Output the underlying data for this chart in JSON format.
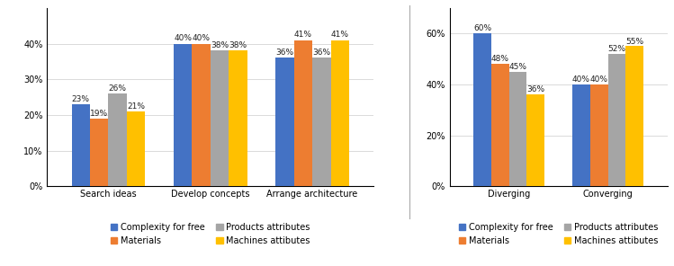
{
  "left_categories": [
    "Search ideas",
    "Develop concepts",
    "Arrange architecture"
  ],
  "right_categories": [
    "Diverging",
    "Converging"
  ],
  "series_names": [
    "Complexity for free",
    "Materials",
    "Products attributes",
    "Machines attibutes"
  ],
  "colors": [
    "#4472C4",
    "#ED7D31",
    "#A5A5A5",
    "#FFC000"
  ],
  "left_values": {
    "Complexity for free": [
      23,
      40,
      36
    ],
    "Materials": [
      19,
      40,
      41
    ],
    "Products attributes": [
      26,
      38,
      36
    ],
    "Machines attibutes": [
      21,
      38,
      41
    ]
  },
  "right_values": {
    "Complexity for free": [
      60,
      40
    ],
    "Materials": [
      48,
      40
    ],
    "Products attributes": [
      45,
      52
    ],
    "Machines attibutes": [
      36,
      55
    ]
  },
  "left_ylim": [
    0,
    50
  ],
  "right_ylim": [
    0,
    70
  ],
  "left_yticks": [
    0,
    10,
    20,
    30,
    40
  ],
  "right_yticks": [
    0,
    20,
    40,
    60
  ],
  "left_ytick_labels": [
    "0%",
    "10%",
    "20%",
    "30%",
    "40%"
  ],
  "right_ytick_labels": [
    "0%",
    "20%",
    "40%",
    "60%"
  ],
  "bar_width": 0.18,
  "label_fontsize": 6.5,
  "tick_fontsize": 7,
  "legend_fontsize": 7
}
